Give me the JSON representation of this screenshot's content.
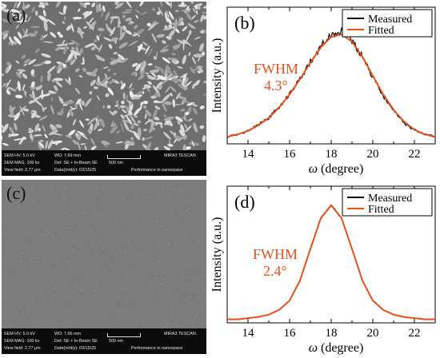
{
  "sem_panels": [
    {
      "label": "(a)",
      "info": {
        "hv": "SEM HV: 5.0 kV",
        "wd": "WD: 7.69 mm",
        "mag": "SEM MAG: 100 kx",
        "det": "Det: SE + In-Beam SE",
        "scale": "500 nm",
        "brand": "MIRA3 TESCAN",
        "view": "View field: 2.77 μm",
        "date": "Date(m/d/y): 03/15/25",
        "motto": "Performance in nanospace"
      }
    },
    {
      "label": "(c)",
      "info": {
        "hv": "SEM HV: 5.0 kV",
        "wd": "WD: 7.66 mm",
        "mag": "SEM MAG: 100 kx",
        "det": "Det: SE + In-Beam SE",
        "scale": "500 nm",
        "brand": "MIRA3 TESCAN",
        "view": "View field: 2.77 μm",
        "date": "Date(m/d/y): 03/15/25",
        "motto": "Performance in nanospace"
      }
    }
  ],
  "colors": {
    "measured": "#000000",
    "fitted": "#e8501c",
    "annotation": "#e8501c"
  },
  "chart_data": [
    {
      "type": "line",
      "label": "(b)",
      "xlabel_symbol": "ω",
      "xlabel_unit": "(degree)",
      "ylabel": "Intensity (a.u.)",
      "xlim": [
        13,
        23
      ],
      "xticks": [
        14,
        16,
        18,
        20,
        22
      ],
      "legend": [
        "Measured",
        "Fitted"
      ],
      "legend_position": "top-right",
      "annotation": [
        "FWHM",
        "4.3°"
      ],
      "series": [
        {
          "name": "Measured",
          "x": [
            13.0,
            13.5,
            14.0,
            14.5,
            15.0,
            15.5,
            16.0,
            16.5,
            17.0,
            17.5,
            18.0,
            18.5,
            19.0,
            19.5,
            20.0,
            20.5,
            21.0,
            21.5,
            22.0,
            22.5,
            23.0
          ],
          "y": [
            0.06,
            0.08,
            0.11,
            0.16,
            0.22,
            0.31,
            0.42,
            0.55,
            0.7,
            0.83,
            0.93,
            0.97,
            0.88,
            0.74,
            0.57,
            0.41,
            0.28,
            0.18,
            0.12,
            0.08,
            0.06
          ]
        },
        {
          "name": "Fitted",
          "x": [
            13.0,
            13.5,
            14.0,
            14.5,
            15.0,
            15.5,
            16.0,
            16.5,
            17.0,
            17.5,
            18.0,
            18.5,
            19.0,
            19.5,
            20.0,
            20.5,
            21.0,
            21.5,
            22.0,
            22.5,
            23.0
          ],
          "y": [
            0.06,
            0.08,
            0.11,
            0.16,
            0.22,
            0.31,
            0.42,
            0.55,
            0.69,
            0.82,
            0.91,
            0.93,
            0.87,
            0.74,
            0.58,
            0.42,
            0.29,
            0.19,
            0.12,
            0.08,
            0.06
          ]
        }
      ]
    },
    {
      "type": "line",
      "label": "(d)",
      "xlabel_symbol": "ω",
      "xlabel_unit": "(degree)",
      "ylabel": "Intensity (a.u.)",
      "xlim": [
        13,
        23
      ],
      "xticks": [
        14,
        16,
        18,
        20,
        22
      ],
      "legend": [
        "Measured",
        "Fitted"
      ],
      "legend_position": "top-right",
      "annotation": [
        "FWHM",
        "2.4°"
      ],
      "series": [
        {
          "name": "Measured",
          "x": [
            13.0,
            13.5,
            14.0,
            14.5,
            15.0,
            15.5,
            16.0,
            16.5,
            17.0,
            17.5,
            18.0,
            18.5,
            19.0,
            19.5,
            20.0,
            20.5,
            21.0,
            21.5,
            22.0,
            22.5,
            23.0
          ],
          "y": [
            0.03,
            0.03,
            0.04,
            0.05,
            0.07,
            0.11,
            0.19,
            0.36,
            0.63,
            0.89,
            1.0,
            0.89,
            0.63,
            0.36,
            0.19,
            0.11,
            0.07,
            0.05,
            0.04,
            0.03,
            0.03
          ]
        },
        {
          "name": "Fitted",
          "x": [
            13.0,
            13.5,
            14.0,
            14.5,
            15.0,
            15.5,
            16.0,
            16.5,
            17.0,
            17.5,
            18.0,
            18.5,
            19.0,
            19.5,
            20.0,
            20.5,
            21.0,
            21.5,
            22.0,
            22.5,
            23.0
          ],
          "y": [
            0.03,
            0.03,
            0.04,
            0.05,
            0.07,
            0.11,
            0.19,
            0.36,
            0.63,
            0.89,
            1.0,
            0.89,
            0.63,
            0.36,
            0.19,
            0.11,
            0.07,
            0.05,
            0.04,
            0.03,
            0.03
          ]
        }
      ]
    }
  ]
}
